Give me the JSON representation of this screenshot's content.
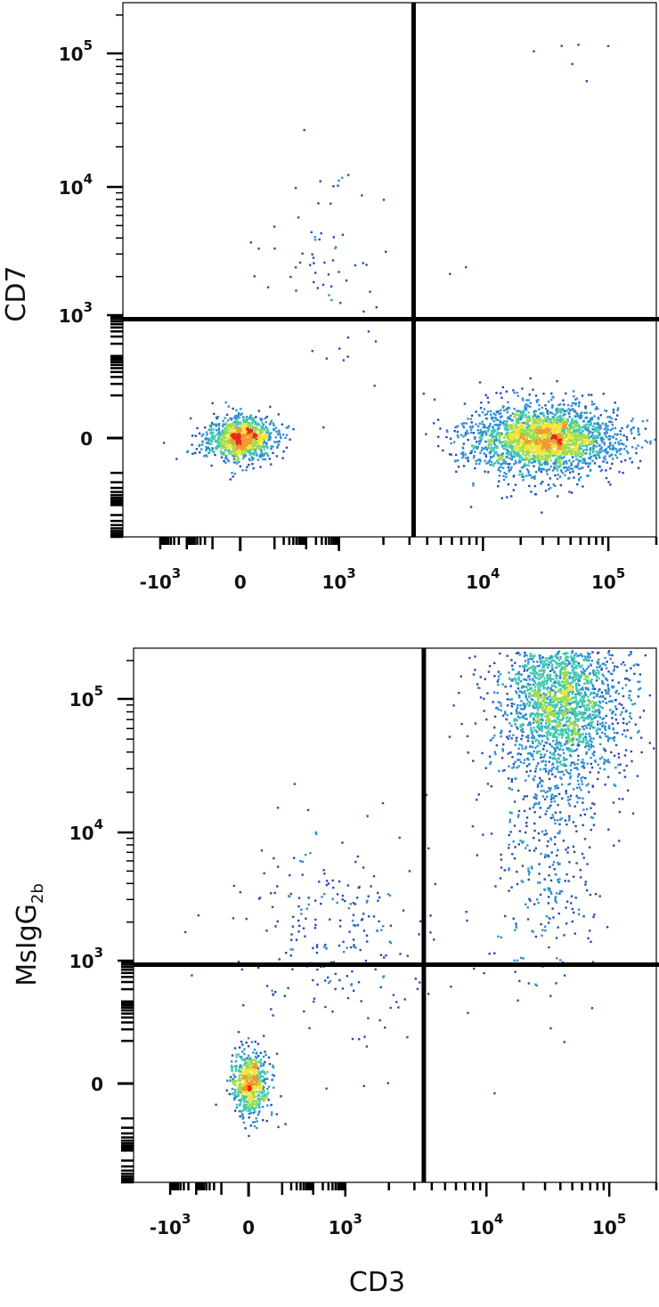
{
  "chart_data": [
    {
      "type": "scatter",
      "title": "",
      "xlabel": "",
      "ylabel": "CD7",
      "x_scale": "biexponential",
      "y_scale": "biexponential",
      "xlim": [
        -1800,
        200000
      ],
      "ylim": [
        -900,
        250000
      ],
      "x_ticks": [
        {
          "value": -1000,
          "base": "-10",
          "exp": "3"
        },
        {
          "value": 0,
          "base": "0",
          "exp": ""
        },
        {
          "value": 1000,
          "base": "10",
          "exp": "3"
        },
        {
          "value": 10000,
          "base": "10",
          "exp": "4"
        },
        {
          "value": 100000,
          "base": "10",
          "exp": "5"
        }
      ],
      "y_ticks": [
        {
          "value": 0,
          "base": "0",
          "exp": ""
        },
        {
          "value": 1000,
          "base": "10",
          "exp": "3"
        },
        {
          "value": 10000,
          "base": "10",
          "exp": "4"
        },
        {
          "value": 100000,
          "base": "10",
          "exp": "5"
        }
      ],
      "quadrant_gate": {
        "x": 3200,
        "y": 800
      },
      "colormap": [
        "#2a4bb0",
        "#2f8fd0",
        "#3fc9b0",
        "#9fdc4c",
        "#f4e43a",
        "#f29a2e",
        "#e8291f"
      ],
      "populations": [
        {
          "x_center": 0,
          "y_center": 0,
          "count": 1100
        },
        {
          "x_center": 30000,
          "y_center": 0,
          "count": 2600
        },
        {
          "x_center": 400,
          "y_center": 2500,
          "count": 70
        },
        {
          "x_center": 60000,
          "y_center": 100000,
          "count": 6
        }
      ]
    },
    {
      "type": "scatter",
      "title": "",
      "xlabel": "CD3",
      "ylabel": "MsIgG",
      "ylabel_subscript": "2b",
      "x_scale": "biexponential",
      "y_scale": "biexponential",
      "xlim": [
        -1800,
        200000
      ],
      "ylim": [
        -900,
        250000
      ],
      "x_ticks": [
        {
          "value": -1000,
          "base": "-10",
          "exp": "3"
        },
        {
          "value": 0,
          "base": "0",
          "exp": ""
        },
        {
          "value": 1000,
          "base": "10",
          "exp": "3"
        },
        {
          "value": 10000,
          "base": "10",
          "exp": "4"
        },
        {
          "value": 100000,
          "base": "10",
          "exp": "5"
        }
      ],
      "y_ticks": [
        {
          "value": 0,
          "base": "0",
          "exp": ""
        },
        {
          "value": 1000,
          "base": "10",
          "exp": "3"
        },
        {
          "value": 10000,
          "base": "10",
          "exp": "4"
        },
        {
          "value": 100000,
          "base": "10",
          "exp": "5"
        }
      ],
      "quadrant_gate": {
        "x": 3500,
        "y": 800
      },
      "colormap": [
        "#2a4bb0",
        "#2f8fd0",
        "#3fc9b0",
        "#9fdc4c",
        "#f4e43a",
        "#f29a2e",
        "#e8291f"
      ],
      "populations": [
        {
          "x_center": 0,
          "y_center": 0,
          "count": 700
        },
        {
          "x_center": 40000,
          "y_center": 100000,
          "count": 2300
        },
        {
          "x_center": 30000,
          "y_center": 6000,
          "count": 300
        },
        {
          "x_center": 600,
          "y_center": 1500,
          "count": 250
        }
      ]
    }
  ]
}
